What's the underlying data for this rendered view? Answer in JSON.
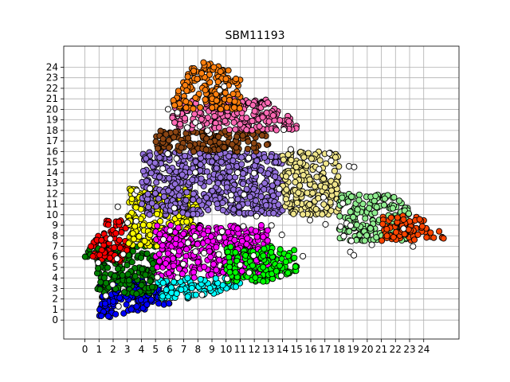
{
  "chart_data": {
    "type": "scatter",
    "title": "SBM11193",
    "xlabel": "",
    "ylabel": "",
    "xlim": [
      -1.5,
      26.5
    ],
    "ylim": [
      -1.8,
      26.0
    ],
    "xticks": [
      0,
      1,
      2,
      3,
      4,
      5,
      6,
      7,
      8,
      9,
      10,
      11,
      12,
      13,
      14,
      15,
      16,
      17,
      18,
      19,
      20,
      21,
      22,
      23,
      24
    ],
    "yticks": [
      0,
      1,
      2,
      3,
      4,
      5,
      6,
      7,
      8,
      9,
      10,
      11,
      12,
      13,
      14,
      15,
      16,
      17,
      18,
      19,
      20,
      21,
      22,
      23,
      24
    ],
    "grid": true,
    "legend": "none",
    "clusters": [
      {
        "color": "#0000ff",
        "x_range": [
          1,
          6
        ],
        "y_range": [
          0,
          4
        ]
      },
      {
        "color": "#008000",
        "x_range": [
          0,
          5
        ],
        "y_range": [
          2.5,
          7
        ]
      },
      {
        "color": "#ff0000",
        "x_range": [
          0,
          3
        ],
        "y_range": [
          5.5,
          9.5
        ]
      },
      {
        "color": "#ffff00",
        "x_range": [
          3,
          8
        ],
        "y_range": [
          7,
          12.5
        ]
      },
      {
        "color": "#ff00ff",
        "x_range": [
          5,
          13
        ],
        "y_range": [
          4,
          9
        ]
      },
      {
        "color": "#00ffff",
        "x_range": [
          5,
          11
        ],
        "y_range": [
          2,
          4
        ]
      },
      {
        "color": "#00ff00",
        "x_range": [
          10,
          15
        ],
        "y_range": [
          3.5,
          7
        ]
      },
      {
        "color": "#9370db",
        "x_range": [
          4,
          14
        ],
        "y_range": [
          10,
          16
        ]
      },
      {
        "color": "#8b4513",
        "x_range": [
          5,
          13
        ],
        "y_range": [
          16,
          18
        ]
      },
      {
        "color": "#ff69b4",
        "x_range": [
          6,
          15
        ],
        "y_range": [
          18,
          21
        ]
      },
      {
        "color": "#ff7f0e",
        "x_range": [
          6,
          11
        ],
        "y_range": [
          20,
          24.5
        ]
      },
      {
        "color": "#f0e68c",
        "x_range": [
          14,
          18
        ],
        "y_range": [
          10,
          16
        ]
      },
      {
        "color": "#90ee90",
        "x_range": [
          18,
          23
        ],
        "y_range": [
          7.5,
          12
        ]
      },
      {
        "color": "#ff4500",
        "x_range": [
          21,
          25.5
        ],
        "y_range": [
          7.5,
          10
        ]
      }
    ]
  }
}
